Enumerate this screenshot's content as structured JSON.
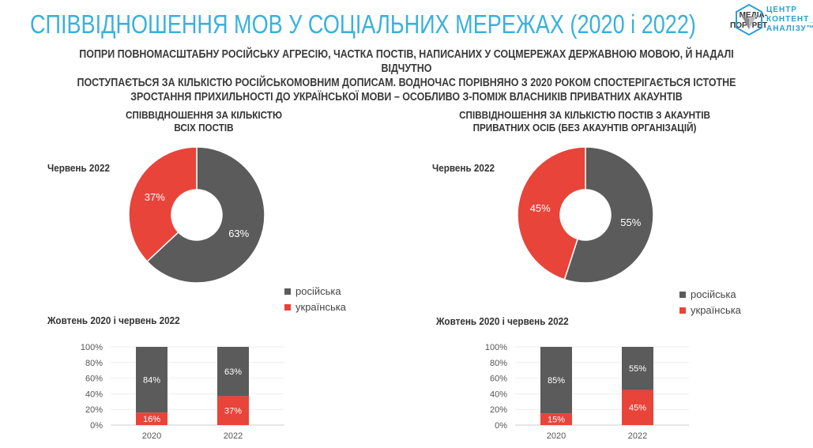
{
  "header": {
    "title": "СПІВВІДНОШЕННЯ МОВ У СОЦІАЛЬНИХ МЕРЕЖАХ (2020 і 2022)",
    "logo_left": [
      "МЕДІА-",
      "ПОРТРЕТ"
    ],
    "logo_brand": [
      "ЦЕНТР",
      "КОНТЕНТ_",
      "АНАЛІЗУ™"
    ]
  },
  "subtitle": [
    "ПОПРИ ПОВНОМАСШТАБНУ РОСІЙСЬКУ АГРЕСІЮ, ЧАСТКА ПОСТІВ, НАПИСАНИХ У СОЦМЕРЕЖАХ ДЕРЖАВНОЮ МОВОЮ, Й НАДАЛІ ВІДЧУТНО",
    "ПОСТУПАЄТЬСЯ ЗА КІЛЬКІСТЮ РОСІЙСЬКОМОВНИМ ДОПИСАМ. ВОДНОЧАС ПОРІВНЯНО З 2020 РОКОМ СПОСТЕРІГАЄТЬСЯ ІСТОТНЕ",
    "ЗРОСТАННЯ ПРИХИЛЬНОСТІ ДО УКРАЇНСЬКОЇ МОВИ – ОСОБЛИВО З-ПОМІЖ ВЛАСНИКІВ ПРИВАТНИХ АКАУНТІВ"
  ],
  "colors": {
    "russian": "#5b5b5b",
    "ukrainian": "#e8443a",
    "title": "#39b1dc"
  },
  "legend": {
    "russian": "російська",
    "ukrainian": "українська"
  },
  "chart_data": [
    {
      "type": "pie",
      "title": [
        "СПІВВІДНОШЕННЯ ЗА КІЛЬКІСТЮ",
        "ВСІХ ПОСТІВ"
      ],
      "label": "Червень 2022",
      "slices": [
        {
          "name": "російська",
          "value": 63,
          "label": "63%"
        },
        {
          "name": "українська",
          "value": 37,
          "label": "37%"
        }
      ]
    },
    {
      "type": "bar",
      "stacked": true,
      "title": "Жовтень 2020 і червень 2022",
      "categories": [
        "2020",
        "2022"
      ],
      "yticks": [
        "100%",
        "80%",
        "60%",
        "40%",
        "20%",
        "0%"
      ],
      "ylim": [
        0,
        100
      ],
      "series": [
        {
          "name": "українська",
          "values": [
            16,
            37
          ]
        },
        {
          "name": "російська",
          "values": [
            84,
            63
          ]
        }
      ]
    },
    {
      "type": "pie",
      "title": [
        "СПІВВІДНОШЕННЯ ЗА КІЛЬКІСТЮ ПОСТІВ З АКАУНТІВ",
        "ПРИВАТНИХ ОСІБ (БЕЗ АКАУНТІВ ОРГАНІЗАЦІЙ)"
      ],
      "label": "Червень 2022",
      "slices": [
        {
          "name": "російська",
          "value": 55,
          "label": "55%"
        },
        {
          "name": "українська",
          "value": 45,
          "label": "45%"
        }
      ]
    },
    {
      "type": "bar",
      "stacked": true,
      "title": "Жовтень 2020 і червень 2022",
      "categories": [
        "2020",
        "2022"
      ],
      "yticks": [
        "100%",
        "80%",
        "60%",
        "40%",
        "20%",
        "0%"
      ],
      "ylim": [
        0,
        100
      ],
      "series": [
        {
          "name": "українська",
          "values": [
            15,
            45
          ]
        },
        {
          "name": "російська",
          "values": [
            85,
            55
          ]
        }
      ]
    }
  ]
}
